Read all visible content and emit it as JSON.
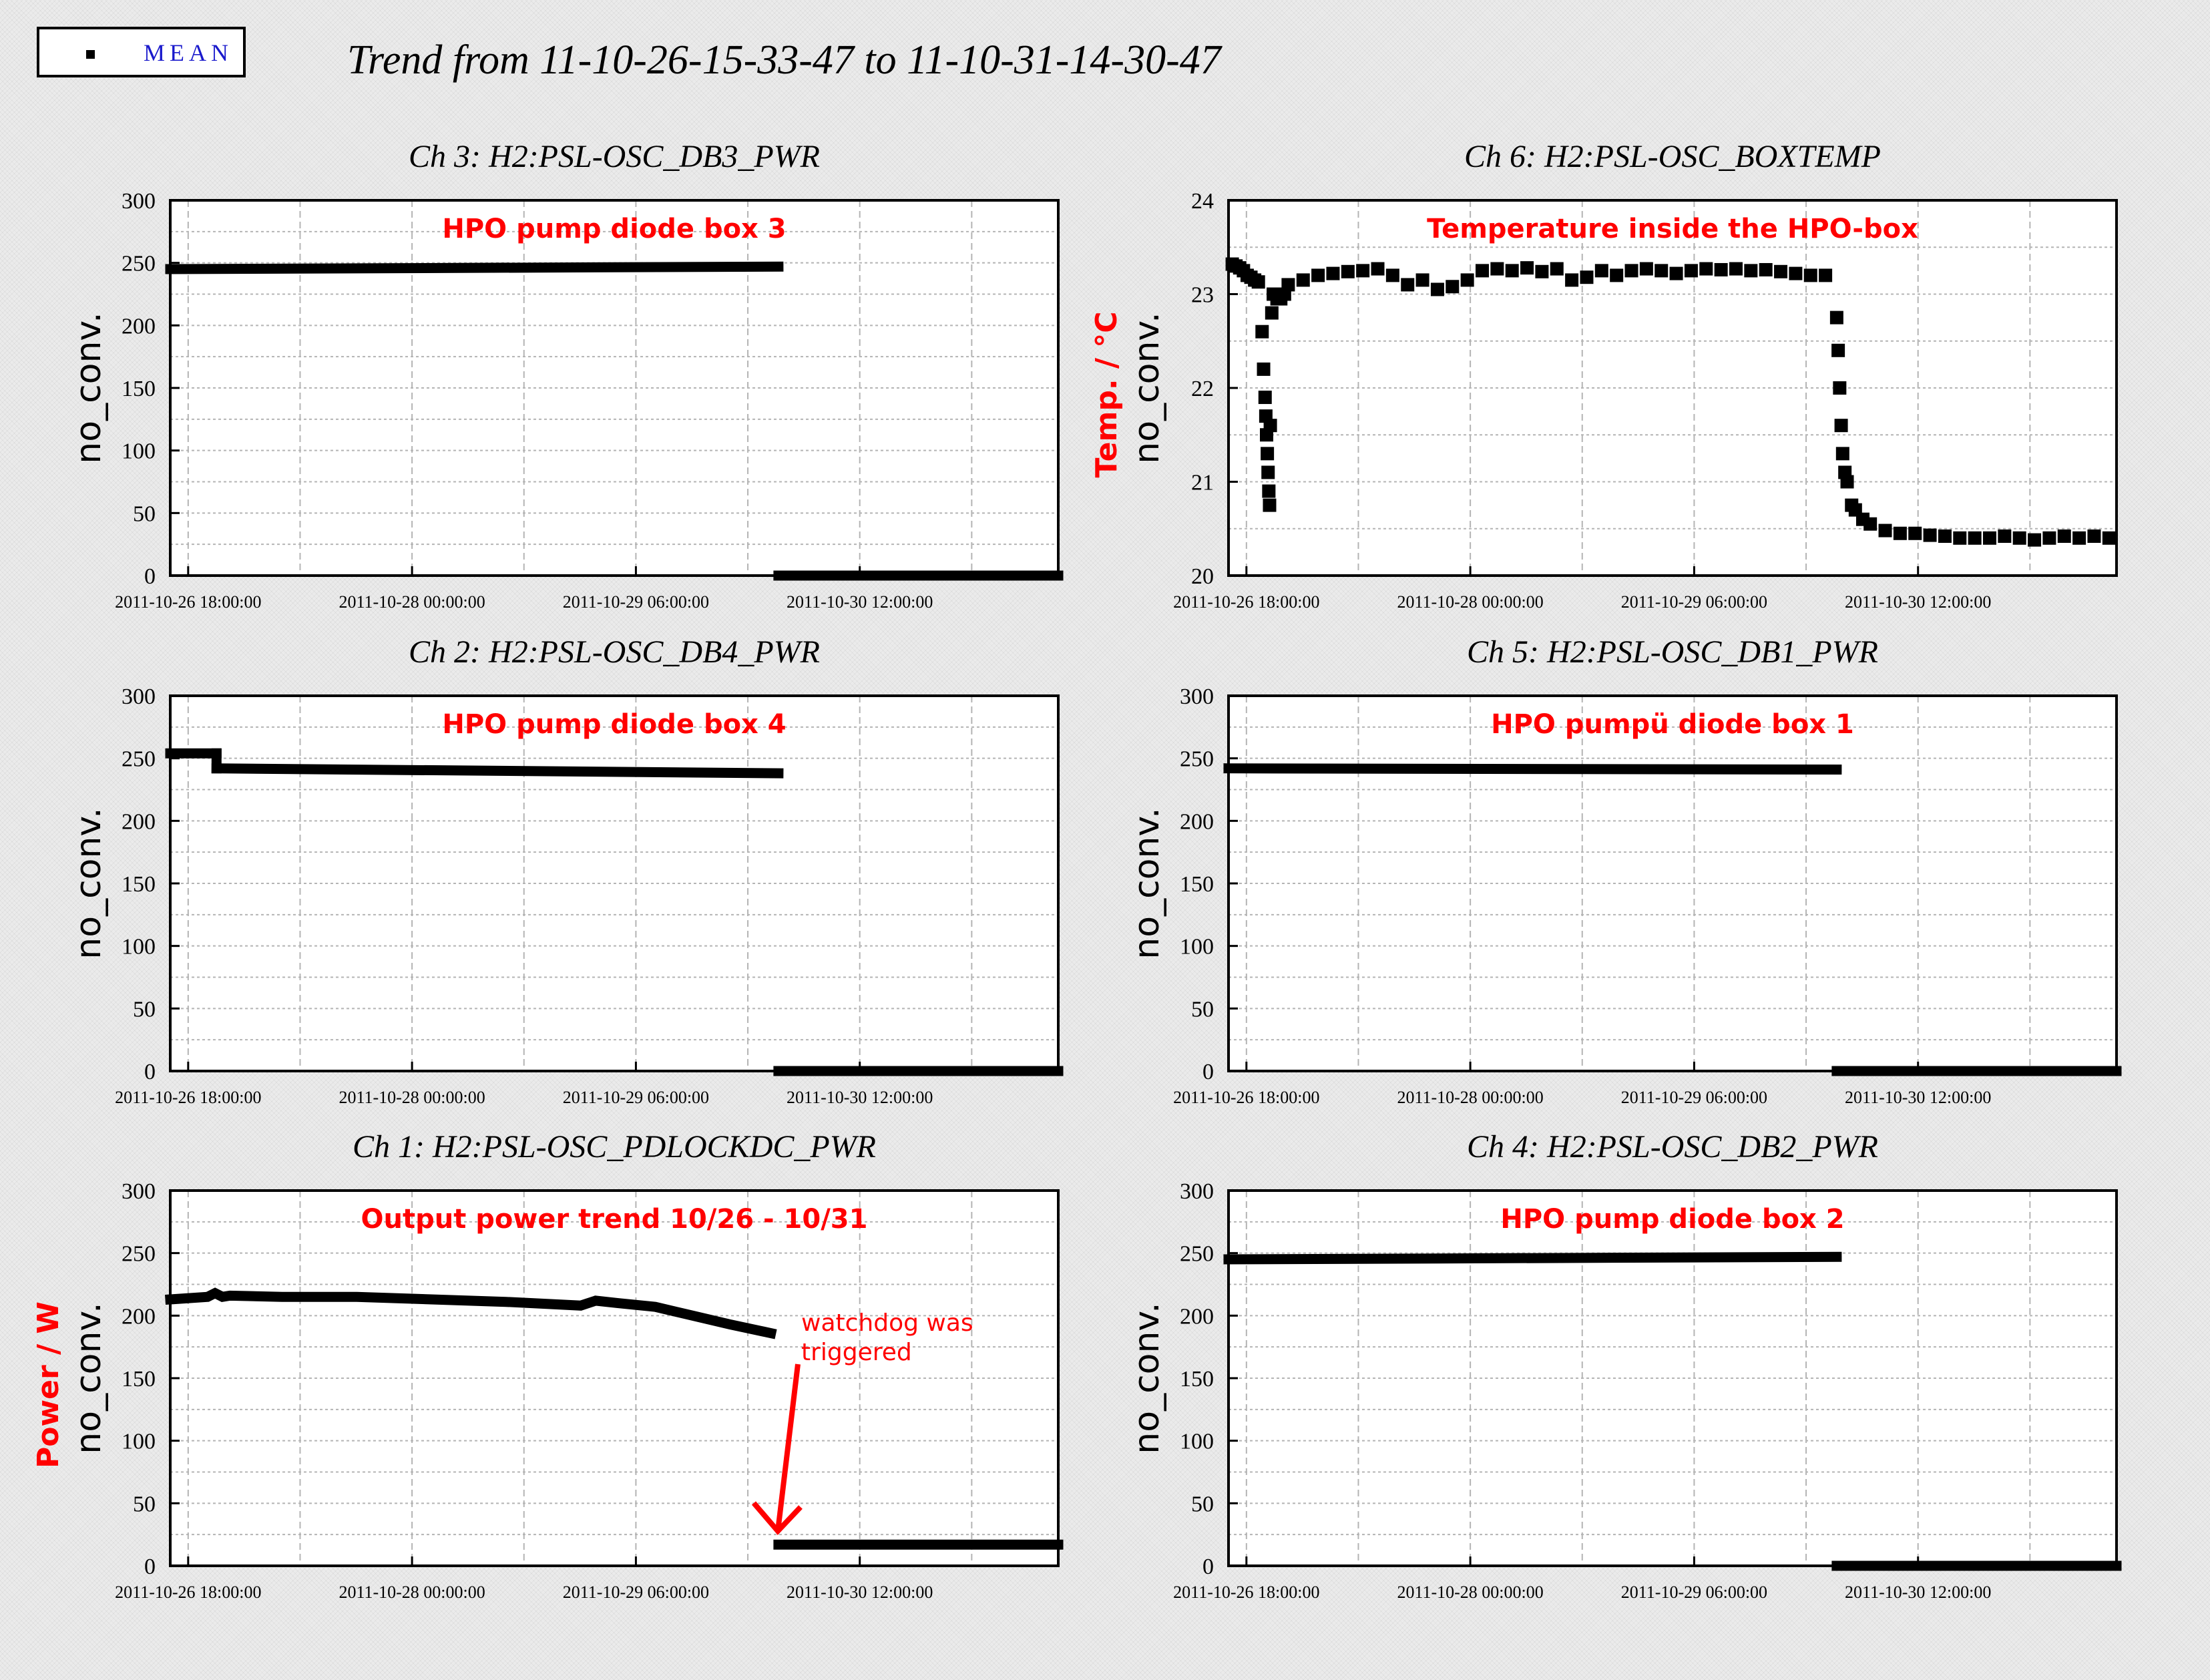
{
  "title": "Trend from 11-10-26-15-33-47 to 11-10-31-14-30-47",
  "legend": {
    "label": "MEAN",
    "marker": "square",
    "label_color": "#1a1acc"
  },
  "colors": {
    "annotation": "#ff0000",
    "data": "#000000"
  },
  "chart_data": [
    {
      "type": "scatter",
      "title": "Ch 3: H2:PSL-OSC_DB3_PWR",
      "annotation": "HPO pump diode box 3",
      "ylabel": "no_conv.",
      "ylabel_extra": "",
      "ylim": [
        0,
        300
      ],
      "yticks": [
        0,
        50,
        100,
        150,
        200,
        250,
        300
      ],
      "xlim": [
        0,
        119.0
      ],
      "xticks": [
        2.4,
        32.4,
        62.4,
        92.4
      ],
      "xtick_labels": [
        "2011-10-26 18:00:00",
        "2011-10-28 00:00:00",
        "2011-10-29 06:00:00",
        "2011-10-30 12:00:00"
      ],
      "segments": [
        {
          "x": [
            0,
            81.5
          ],
          "y": [
            245,
            247
          ]
        },
        {
          "x": [
            81.5,
            119.0
          ],
          "y": [
            0,
            0
          ]
        }
      ],
      "points": []
    },
    {
      "type": "scatter",
      "title": "Ch 6: H2:PSL-OSC_BOXTEMP",
      "annotation": "Temperature inside the HPO-box",
      "ylabel": "no_conv.",
      "ylabel_extra": "Temp. / °C",
      "ylim": [
        20,
        24
      ],
      "yticks": [
        20,
        21,
        22,
        23,
        24
      ],
      "xlim": [
        0,
        119.0
      ],
      "xticks": [
        2.4,
        32.4,
        62.4,
        92.4
      ],
      "xtick_labels": [
        "2011-10-26 18:00:00",
        "2011-10-28 00:00:00",
        "2011-10-29 06:00:00",
        "2011-10-30 12:00:00"
      ],
      "segments": [],
      "points": [
        [
          0.5,
          23.32
        ],
        [
          1.0,
          23.3
        ],
        [
          1.5,
          23.28
        ],
        [
          2.0,
          23.25
        ],
        [
          2.5,
          23.2
        ],
        [
          3.0,
          23.18
        ],
        [
          3.5,
          23.15
        ],
        [
          4.0,
          23.13
        ],
        [
          4.5,
          22.6
        ],
        [
          4.7,
          22.2
        ],
        [
          4.9,
          21.9
        ],
        [
          5.0,
          21.7
        ],
        [
          5.1,
          21.5
        ],
        [
          5.2,
          21.3
        ],
        [
          5.3,
          21.1
        ],
        [
          5.4,
          20.9
        ],
        [
          5.5,
          20.75
        ],
        [
          5.6,
          21.6
        ],
        [
          5.8,
          22.8
        ],
        [
          6.0,
          23.0
        ],
        [
          6.5,
          22.95
        ],
        [
          7.0,
          22.95
        ],
        [
          7.5,
          23.0
        ],
        [
          8,
          23.1
        ],
        [
          10,
          23.15
        ],
        [
          12,
          23.2
        ],
        [
          14,
          23.22
        ],
        [
          16,
          23.24
        ],
        [
          18,
          23.25
        ],
        [
          20,
          23.27
        ],
        [
          22,
          23.2
        ],
        [
          24,
          23.1
        ],
        [
          26,
          23.15
        ],
        [
          28,
          23.05
        ],
        [
          30,
          23.08
        ],
        [
          32,
          23.15
        ],
        [
          34,
          23.25
        ],
        [
          36,
          23.27
        ],
        [
          38,
          23.25
        ],
        [
          40,
          23.28
        ],
        [
          42,
          23.24
        ],
        [
          44,
          23.27
        ],
        [
          46,
          23.15
        ],
        [
          48,
          23.18
        ],
        [
          50,
          23.25
        ],
        [
          52,
          23.2
        ],
        [
          54,
          23.25
        ],
        [
          56,
          23.27
        ],
        [
          58,
          23.25
        ],
        [
          60,
          23.22
        ],
        [
          62,
          23.25
        ],
        [
          64,
          23.27
        ],
        [
          66,
          23.26
        ],
        [
          68,
          23.27
        ],
        [
          70,
          23.25
        ],
        [
          72,
          23.26
        ],
        [
          74,
          23.24
        ],
        [
          76,
          23.22
        ],
        [
          78,
          23.2
        ],
        [
          80,
          23.2
        ],
        [
          81.5,
          22.75
        ],
        [
          81.7,
          22.4
        ],
        [
          81.9,
          22.0
        ],
        [
          82.1,
          21.6
        ],
        [
          82.3,
          21.3
        ],
        [
          82.6,
          21.1
        ],
        [
          82.9,
          21.0
        ],
        [
          83.5,
          20.75
        ],
        [
          84,
          20.7
        ],
        [
          85,
          20.6
        ],
        [
          86,
          20.55
        ],
        [
          88,
          20.48
        ],
        [
          90,
          20.45
        ],
        [
          92,
          20.45
        ],
        [
          94,
          20.43
        ],
        [
          96,
          20.42
        ],
        [
          98,
          20.4
        ],
        [
          100,
          20.4
        ],
        [
          102,
          20.4
        ],
        [
          104,
          20.42
        ],
        [
          106,
          20.4
        ],
        [
          108,
          20.38
        ],
        [
          110,
          20.4
        ],
        [
          112,
          20.42
        ],
        [
          114,
          20.4
        ],
        [
          116,
          20.42
        ],
        [
          118,
          20.4
        ]
      ]
    },
    {
      "type": "scatter",
      "title": "Ch 2: H2:PSL-OSC_DB4_PWR",
      "annotation": "HPO pump diode box 4",
      "ylabel": "no_conv.",
      "ylabel_extra": "",
      "ylim": [
        0,
        300
      ],
      "yticks": [
        0,
        50,
        100,
        150,
        200,
        250,
        300
      ],
      "xlim": [
        0,
        119.0
      ],
      "xticks": [
        2.4,
        32.4,
        62.4,
        92.4
      ],
      "xtick_labels": [
        "2011-10-26 18:00:00",
        "2011-10-28 00:00:00",
        "2011-10-29 06:00:00",
        "2011-10-30 12:00:00"
      ],
      "segments": [
        {
          "x": [
            0,
            6.2
          ],
          "y": [
            254,
            254
          ]
        },
        {
          "x": [
            6.2,
            6.2
          ],
          "y": [
            254,
            242
          ]
        },
        {
          "x": [
            6.2,
            81.5
          ],
          "y": [
            242,
            238
          ]
        },
        {
          "x": [
            81.5,
            119.0
          ],
          "y": [
            0,
            0
          ]
        }
      ],
      "points": []
    },
    {
      "type": "scatter",
      "title": "Ch 5: H2:PSL-OSC_DB1_PWR",
      "annotation": "HPO pumpü diode box 1",
      "ylabel": "no_conv.",
      "ylabel_extra": "",
      "ylim": [
        0,
        300
      ],
      "yticks": [
        0,
        50,
        100,
        150,
        200,
        250,
        300
      ],
      "xlim": [
        0,
        119.0
      ],
      "xticks": [
        2.4,
        32.4,
        62.4,
        92.4
      ],
      "xtick_labels": [
        "2011-10-26 18:00:00",
        "2011-10-28 00:00:00",
        "2011-10-29 06:00:00",
        "2011-10-30 12:00:00"
      ],
      "segments": [
        {
          "x": [
            0,
            81.5
          ],
          "y": [
            242,
            241
          ]
        },
        {
          "x": [
            81.5,
            119.0
          ],
          "y": [
            0,
            0
          ]
        }
      ],
      "points": []
    },
    {
      "type": "scatter",
      "title": "Ch 1: H2:PSL-OSC_PDLOCKDC_PWR",
      "annotation": "Output power trend 10/26 - 10/31",
      "callout": "watchdog was\ntriggered",
      "ylabel": "no_conv.",
      "ylabel_extra": "Power / W",
      "ylim": [
        0,
        300
      ],
      "yticks": [
        0,
        50,
        100,
        150,
        200,
        250,
        300
      ],
      "xlim": [
        0,
        119.0
      ],
      "xticks": [
        2.4,
        32.4,
        62.4,
        92.4
      ],
      "xtick_labels": [
        "2011-10-26 18:00:00",
        "2011-10-28 00:00:00",
        "2011-10-29 06:00:00",
        "2011-10-30 12:00:00"
      ],
      "segments": [
        {
          "x": [
            0,
            5,
            6,
            7,
            8,
            15,
            25,
            35,
            45,
            55,
            57,
            60,
            65,
            70,
            75,
            80.5
          ],
          "y": [
            213,
            215,
            218,
            215,
            216,
            215,
            215,
            213,
            211,
            208,
            212,
            210,
            207,
            200,
            193,
            186
          ]
        },
        {
          "x": [
            81.5,
            119.0
          ],
          "y": [
            17,
            17
          ]
        }
      ],
      "points": []
    },
    {
      "type": "scatter",
      "title": "Ch 4: H2:PSL-OSC_DB2_PWR",
      "annotation": "HPO pump diode box 2",
      "ylabel": "no_conv.",
      "ylabel_extra": "",
      "ylim": [
        0,
        300
      ],
      "yticks": [
        0,
        50,
        100,
        150,
        200,
        250,
        300
      ],
      "xlim": [
        0,
        119.0
      ],
      "xticks": [
        2.4,
        32.4,
        62.4,
        92.4
      ],
      "xtick_labels": [
        "2011-10-26 18:00:00",
        "2011-10-28 00:00:00",
        "2011-10-29 06:00:00",
        "2011-10-30 12:00:00"
      ],
      "segments": [
        {
          "x": [
            0,
            81.5
          ],
          "y": [
            245,
            247
          ]
        },
        {
          "x": [
            81.5,
            119.0
          ],
          "y": [
            0,
            0
          ]
        }
      ],
      "points": []
    }
  ]
}
